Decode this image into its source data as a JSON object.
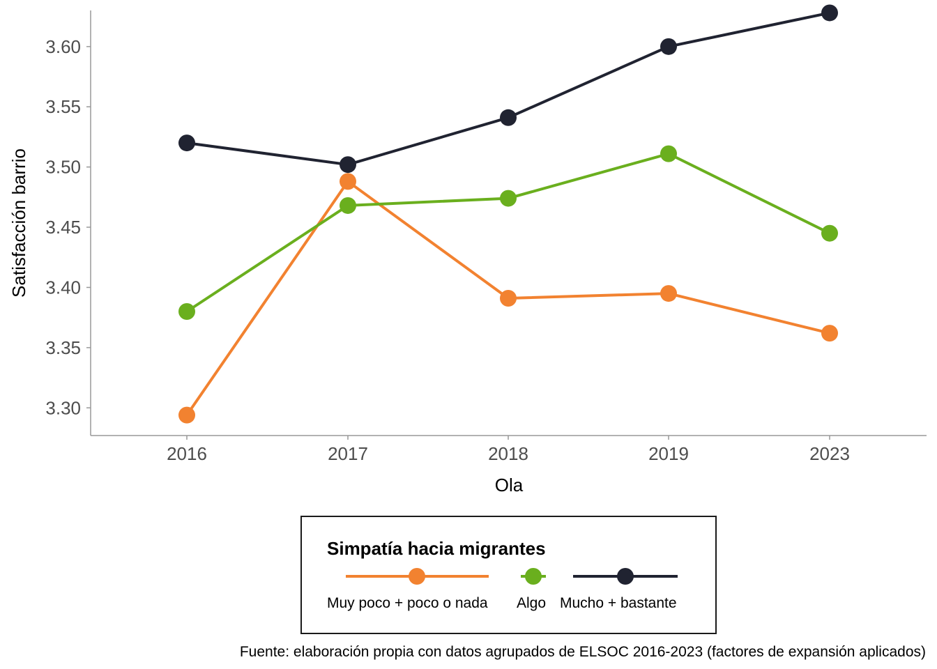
{
  "chart_data": {
    "type": "line",
    "title": "",
    "xlabel": "Ola",
    "ylabel": "Satisfacción barrio",
    "categories": [
      "2016",
      "2017",
      "2018",
      "2019",
      "2023"
    ],
    "ylim": [
      3.277,
      3.63
    ],
    "yticks": [
      3.3,
      3.35,
      3.4,
      3.45,
      3.5,
      3.55,
      3.6
    ],
    "ytick_labels": [
      "3.30",
      "3.35",
      "3.40",
      "3.45",
      "3.50",
      "3.55",
      "3.60"
    ],
    "grid": false,
    "legend": {
      "title": "Simpatía hacia migrantes",
      "position": "bottom"
    },
    "series": [
      {
        "name": "Muy poco + poco o nada",
        "color": "#F28230",
        "values": [
          3.294,
          3.488,
          3.391,
          3.395,
          3.362
        ]
      },
      {
        "name": "Algo",
        "color": "#6AAF1E",
        "values": [
          3.38,
          3.468,
          3.474,
          3.511,
          3.445
        ]
      },
      {
        "name": "Mucho + bastante",
        "color": "#202331",
        "values": [
          3.52,
          3.502,
          3.541,
          3.6,
          3.628
        ]
      }
    ],
    "caption": "Fuente: elaboración propia con datos agrupados de ELSOC 2016-2023 (factores de expansión aplicados)"
  }
}
